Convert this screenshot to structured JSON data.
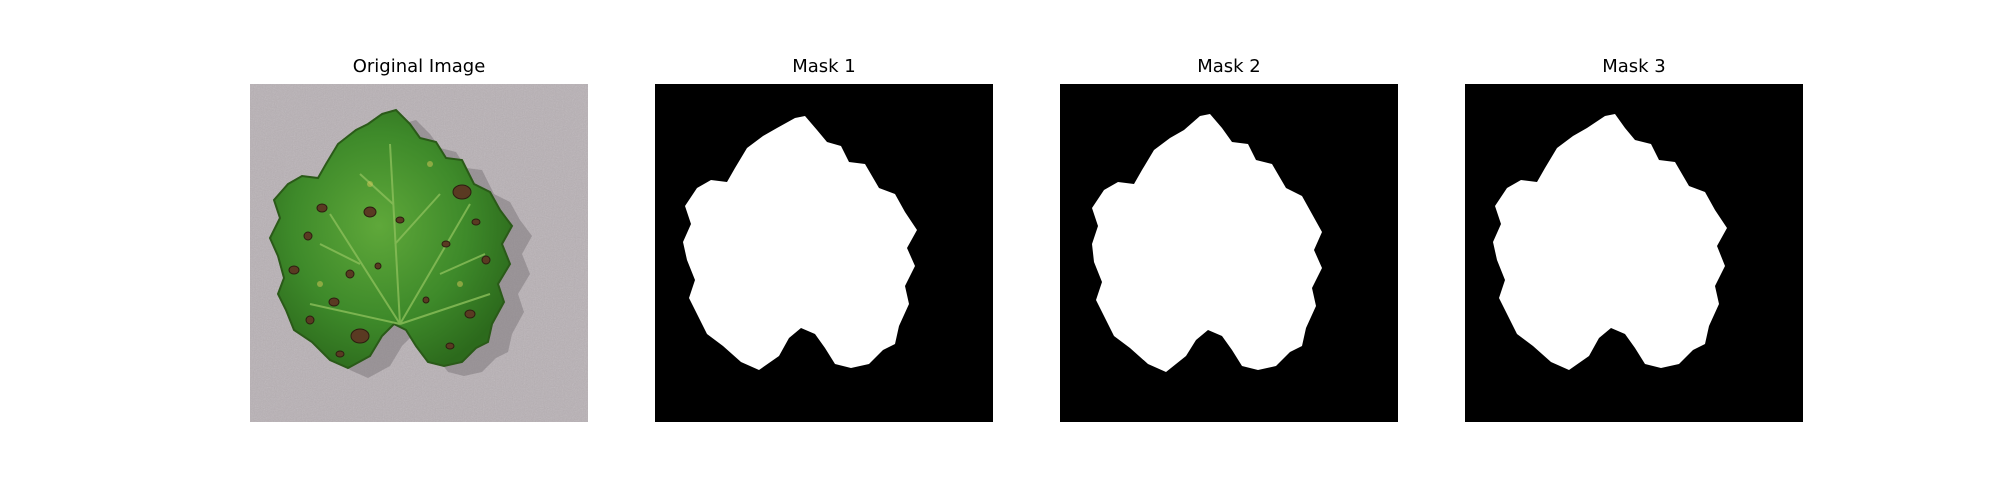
{
  "panels": [
    {
      "title": "Original Image"
    },
    {
      "title": "Mask 1"
    },
    {
      "title": "Mask 2"
    },
    {
      "title": "Mask 3"
    }
  ],
  "colors": {
    "mask_background": "#000000",
    "mask_foreground": "#ffffff",
    "photo_background": "#b8b1b5",
    "leaf_green": "#3e8a2a",
    "leaf_dark": "#24601a",
    "leaf_spot": "#5a3a22"
  },
  "icons": [
    "leaf-photo",
    "segmentation-mask"
  ]
}
